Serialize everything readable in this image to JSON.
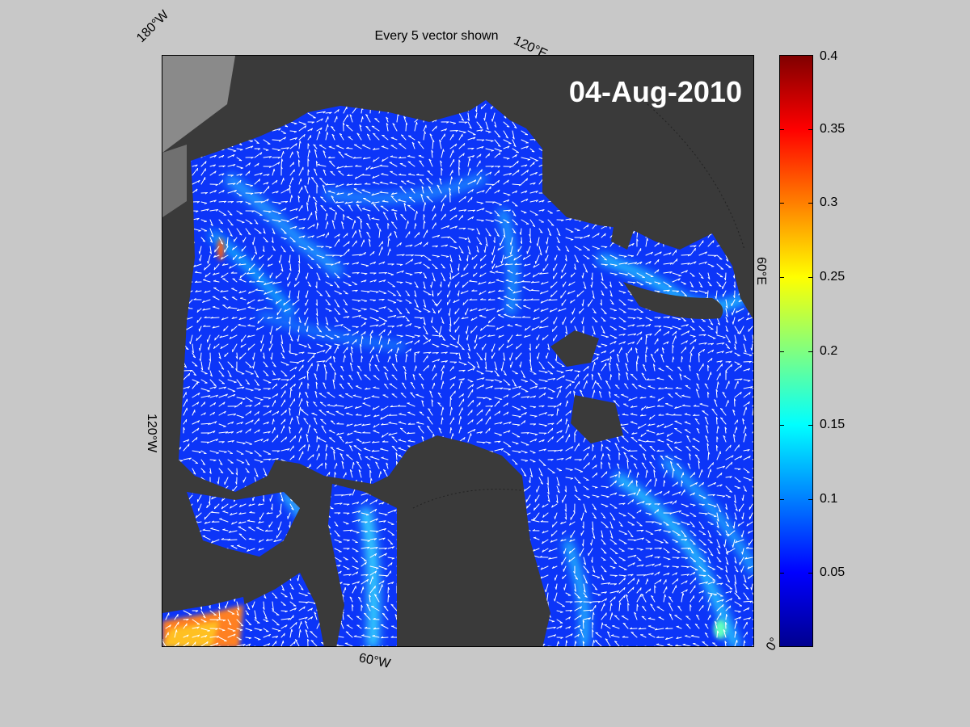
{
  "map": {
    "title": "Every 5 vector shown",
    "date": "04-Aug-2010",
    "grid_labels": {
      "w180": "180°W",
      "e120": "120°E",
      "e60": "60°E",
      "w120": "120°W",
      "w60": "60°W",
      "zero": "0°"
    },
    "colors": {
      "land": "#3a3a3a",
      "land_light": "#8a8a8a",
      "ocean_low": "#0000ff",
      "ocean_mid": "#0a3cff",
      "vector": "#ffffff"
    }
  },
  "colorbar": {
    "min": 0,
    "max": 0.4,
    "tick_values": [
      0.05,
      0.1,
      0.15,
      0.2,
      0.25,
      0.3,
      0.35,
      0.4
    ],
    "tick_labels": [
      "0.05",
      "0.1",
      "0.15",
      "0.2",
      "0.25",
      "0.3",
      "0.35",
      "0.4"
    ],
    "colormap": "jet"
  }
}
